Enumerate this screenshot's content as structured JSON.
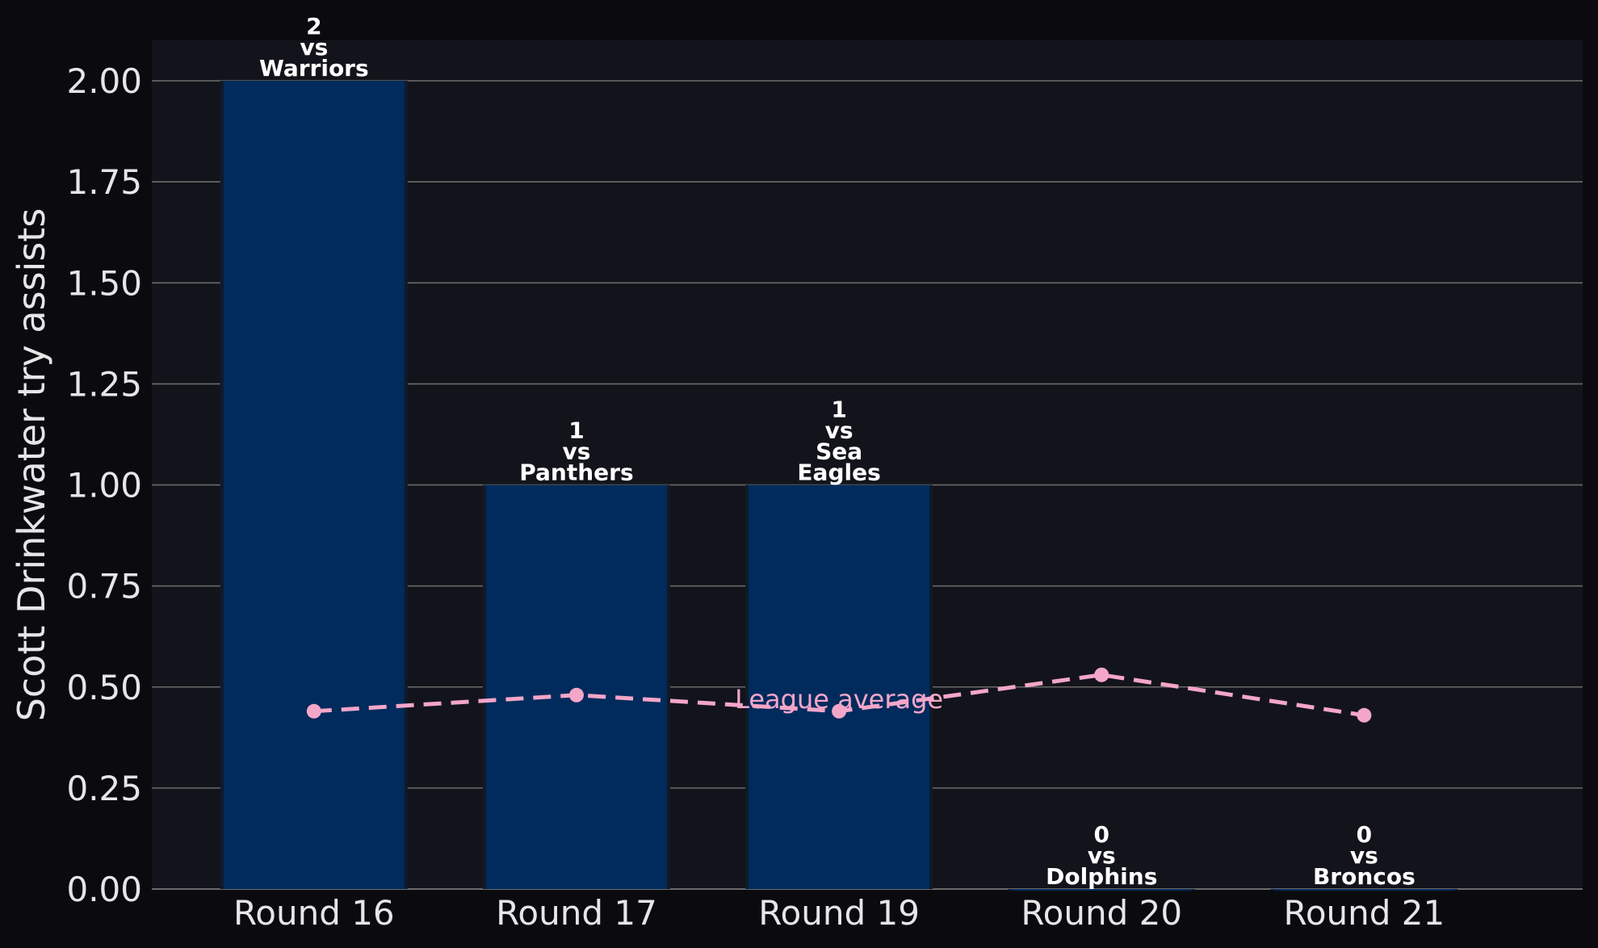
{
  "chart_data": {
    "type": "bar",
    "ylabel": "Scott Drinkwater try assists",
    "xlabel": "",
    "title": "",
    "ylim": [
      0,
      2.1
    ],
    "yticks": [
      "0.00",
      "0.25",
      "0.50",
      "0.75",
      "1.00",
      "1.25",
      "1.50",
      "1.75",
      "2.00"
    ],
    "categories": [
      "Round 16",
      "Round 17",
      "Round 19",
      "Round 20",
      "Round 21"
    ],
    "values": [
      2,
      1,
      1,
      0,
      0
    ],
    "bar_labels": [
      [
        "2",
        "vs",
        "Warriors"
      ],
      [
        "1",
        "vs",
        "Panthers"
      ],
      [
        "1",
        "vs",
        "Sea",
        "Eagles"
      ],
      [
        "0",
        "vs",
        "Dolphins"
      ],
      [
        "0",
        "vs",
        "Broncos"
      ]
    ],
    "average_series": {
      "name": "League average",
      "values": [
        0.44,
        0.48,
        0.44,
        0.53,
        0.43
      ]
    },
    "grid": true,
    "colors": {
      "bar": "#002b5c",
      "average": "#f4a6c8",
      "plot_bg": "#13141b",
      "page_bg": "#0b0b0f",
      "grid": "#6a6a6a",
      "text": "#e6e6e6"
    }
  }
}
